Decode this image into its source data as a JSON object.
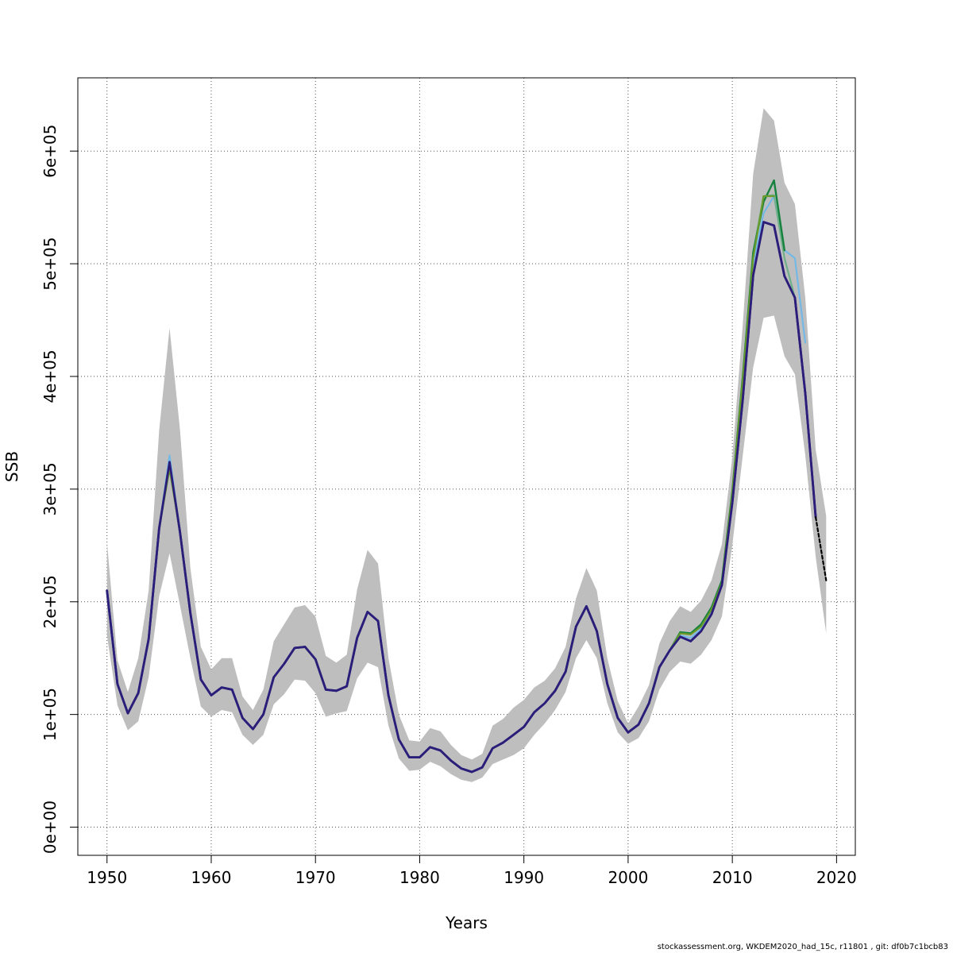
{
  "chart_data": {
    "type": "line",
    "xlabel": "Years",
    "ylabel": "SSB",
    "xlim": [
      1947.2,
      2021.8
    ],
    "ylim": [
      -25000,
      665000
    ],
    "xticks": [
      1950,
      1960,
      1970,
      1980,
      1990,
      2000,
      2010,
      2020
    ],
    "yticks": [
      0,
      100000,
      200000,
      300000,
      400000,
      500000,
      600000
    ],
    "ytick_labels": [
      "0e+00",
      "1e+05",
      "2e+05",
      "3e+05",
      "4e+05",
      "5e+05",
      "6e+05"
    ],
    "grid": true,
    "legend": "none",
    "colors": {
      "band": "#bebebe",
      "current": "#2b1d7a",
      "projection": "#000000",
      "retro": [
        "#1f3fbf",
        "#74b9e6",
        "#6a9a2a",
        "#16823d",
        "#6fb08a"
      ]
    },
    "confidence_band": {
      "x": [
        1950,
        1951,
        1952,
        1953,
        1954,
        1955,
        1956,
        1957,
        1958,
        1959,
        1960,
        1961,
        1962,
        1963,
        1964,
        1965,
        1966,
        1967,
        1968,
        1969,
        1970,
        1971,
        1972,
        1973,
        1974,
        1975,
        1976,
        1977,
        1978,
        1979,
        1980,
        1981,
        1982,
        1983,
        1984,
        1985,
        1986,
        1987,
        1988,
        1989,
        1990,
        1991,
        1992,
        1993,
        1994,
        1995,
        1996,
        1997,
        1998,
        1999,
        2000,
        2001,
        2002,
        2003,
        2004,
        2005,
        2006,
        2007,
        2008,
        2009,
        2010,
        2011,
        2012,
        2013,
        2014,
        2015,
        2016,
        2017,
        2018,
        2019
      ],
      "lower": [
        170000,
        108000,
        86000,
        94000,
        133000,
        205000,
        243000,
        197000,
        150000,
        107000,
        98000,
        104000,
        102000,
        82000,
        73000,
        82000,
        109000,
        118000,
        131000,
        130000,
        119000,
        98000,
        101000,
        103000,
        132000,
        146000,
        142000,
        90000,
        61000,
        50000,
        51000,
        58000,
        54000,
        47000,
        42000,
        40000,
        44000,
        56000,
        60000,
        64000,
        70000,
        82000,
        92000,
        104000,
        120000,
        150000,
        166000,
        150000,
        110000,
        84000,
        74000,
        79000,
        94000,
        122000,
        138000,
        147000,
        145000,
        153000,
        166000,
        187000,
        250000,
        330000,
        408000,
        452000,
        454000,
        418000,
        402000,
        330000,
        240000,
        172000
      ],
      "upper": [
        253000,
        148000,
        120000,
        150000,
        210000,
        352000,
        443000,
        353000,
        230000,
        160000,
        140000,
        150000,
        150000,
        116000,
        104000,
        122000,
        165000,
        180000,
        195000,
        197000,
        187000,
        152000,
        146000,
        153000,
        211000,
        246000,
        234000,
        150000,
        100000,
        77000,
        76000,
        88000,
        85000,
        73000,
        64000,
        60000,
        65000,
        90000,
        96000,
        106000,
        113000,
        124000,
        130000,
        141000,
        160000,
        203000,
        230000,
        210000,
        150000,
        112000,
        92000,
        107000,
        126000,
        163000,
        183000,
        196000,
        191000,
        201000,
        219000,
        251000,
        328000,
        446000,
        580000,
        638000,
        627000,
        572000,
        553000,
        470000,
        335000,
        276000
      ]
    },
    "series": [
      {
        "x": [
          1950,
          1951,
          1952,
          1953,
          1954,
          1955,
          1956,
          1957,
          1958,
          1959,
          1960,
          1961,
          1962,
          1963,
          1964,
          1965,
          1966,
          1967,
          1968,
          1969,
          1970,
          1971,
          1972,
          1973,
          1974,
          1975,
          1976,
          1977,
          1978,
          1979,
          1980,
          1981,
          1982,
          1983,
          1984,
          1985,
          1986,
          1987,
          1988,
          1989,
          1990,
          1991,
          1992,
          1993,
          1994,
          1995,
          1996,
          1997,
          1998,
          1999,
          2000,
          2001,
          2002,
          2003,
          2004,
          2005,
          2006,
          2007,
          2008,
          2009,
          2010,
          2011,
          2012,
          2013,
          2014,
          2015,
          2016,
          2017,
          2018
        ],
        "values": [
          210000,
          127000,
          101000,
          119000,
          167000,
          265000,
          324000,
          262000,
          190000,
          131000,
          117000,
          124000,
          122000,
          97000,
          87000,
          100000,
          133000,
          145000,
          159000,
          160000,
          149000,
          122000,
          121000,
          125000,
          168000,
          191000,
          183000,
          117000,
          78000,
          62000,
          62000,
          71000,
          68000,
          59000,
          52000,
          49000,
          53000,
          70000,
          75000,
          82000,
          89000,
          102000,
          110000,
          121000,
          138000,
          178000,
          196000,
          174000,
          127000,
          97000,
          84000,
          91000,
          110000,
          142000,
          157000,
          169000,
          165000,
          174000,
          189000,
          215000,
          288000,
          380000,
          490000,
          537000,
          534000,
          489000,
          470000,
          385000,
          275000
        ],
        "color": "#2b1d7a",
        "width": 2.8
      },
      {
        "x": [
          1950,
          1951,
          1952,
          1953,
          1954,
          1955,
          1956,
          1957,
          1958,
          1959,
          1960,
          1961,
          1962,
          1963,
          1964,
          1965,
          1966,
          1967,
          1968,
          1969,
          1970,
          1971,
          1972,
          1973,
          1974,
          1975,
          1976,
          1977,
          1978,
          1979,
          1980,
          1981,
          1982,
          1983,
          1984,
          1985,
          1986,
          1987,
          1988,
          1989,
          1990,
          1991,
          1992,
          1993,
          1994,
          1995,
          1996,
          1997,
          1998,
          1999,
          2000,
          2001,
          2002,
          2003,
          2004,
          2005,
          2006,
          2007,
          2008,
          2009,
          2010,
          2011,
          2012,
          2013,
          2014,
          2015,
          2016,
          2017
        ],
        "values": [
          210000,
          127000,
          101000,
          119000,
          167000,
          265000,
          330000,
          262000,
          190000,
          131000,
          117000,
          124000,
          122000,
          97000,
          87000,
          100000,
          133000,
          145000,
          159000,
          160000,
          149000,
          122000,
          121000,
          125000,
          168000,
          191000,
          183000,
          117000,
          78000,
          62000,
          62000,
          71000,
          68000,
          59000,
          52000,
          49000,
          53000,
          70000,
          75000,
          82000,
          89000,
          102000,
          110000,
          121000,
          138000,
          178000,
          196000,
          174000,
          127000,
          97000,
          84000,
          91000,
          110000,
          142000,
          157000,
          170000,
          168000,
          176000,
          192000,
          218000,
          295000,
          390000,
          500000,
          545000,
          560000,
          512000,
          505000,
          430000
        ],
        "color": "#74b9e6",
        "width": 2.2
      },
      {
        "x": [
          1950,
          1951,
          1952,
          1953,
          1954,
          1955,
          1956,
          1957,
          1958,
          1959,
          1960,
          1961,
          1962,
          1963,
          1964,
          1965,
          1966,
          1967,
          1968,
          1969,
          1970,
          1971,
          1972,
          1973,
          1974,
          1975,
          1976,
          1977,
          1978,
          1979,
          1980,
          1981,
          1982,
          1983,
          1984,
          1985,
          1986,
          1987,
          1988,
          1989,
          1990,
          1991,
          1992,
          1993,
          1994,
          1995,
          1996,
          1997,
          1998,
          1999,
          2000,
          2001,
          2002,
          2003,
          2004,
          2005,
          2006,
          2007,
          2008,
          2009,
          2010,
          2011,
          2012,
          2013,
          2014,
          2015,
          2016
        ],
        "values": [
          210000,
          127000,
          101000,
          119000,
          167000,
          265000,
          320000,
          262000,
          190000,
          131000,
          117000,
          124000,
          122000,
          97000,
          87000,
          100000,
          133000,
          145000,
          159000,
          160000,
          149000,
          122000,
          121000,
          125000,
          168000,
          191000,
          183000,
          117000,
          78000,
          62000,
          62000,
          71000,
          68000,
          59000,
          52000,
          49000,
          53000,
          70000,
          75000,
          82000,
          89000,
          102000,
          110000,
          121000,
          138000,
          178000,
          196000,
          174000,
          127000,
          97000,
          84000,
          91000,
          110000,
          142000,
          157000,
          172000,
          172000,
          178000,
          194000,
          218000,
          297000,
          395000,
          510000,
          560000,
          561000,
          505000,
          470000
        ],
        "color": "#6fb08a",
        "width": 2.2
      },
      {
        "x": [
          1950,
          1951,
          1952,
          1953,
          1954,
          1955,
          1956,
          1957,
          1958,
          1959,
          1960,
          1961,
          1962,
          1963,
          1964,
          1965,
          1966,
          1967,
          1968,
          1969,
          1970,
          1971,
          1972,
          1973,
          1974,
          1975,
          1976,
          1977,
          1978,
          1979,
          1980,
          1981,
          1982,
          1983,
          1984,
          1985,
          1986,
          1987,
          1988,
          1989,
          1990,
          1991,
          1992,
          1993,
          1994,
          1995,
          1996,
          1997,
          1998,
          1999,
          2000,
          2001,
          2002,
          2003,
          2004,
          2005,
          2006,
          2007,
          2008,
          2009,
          2010,
          2011,
          2012,
          2013,
          2014,
          2015
        ],
        "values": [
          210000,
          127000,
          101000,
          119000,
          167000,
          265000,
          322000,
          262000,
          190000,
          131000,
          117000,
          124000,
          122000,
          97000,
          87000,
          100000,
          133000,
          145000,
          159000,
          160000,
          149000,
          122000,
          121000,
          125000,
          168000,
          191000,
          183000,
          117000,
          78000,
          62000,
          62000,
          71000,
          68000,
          59000,
          52000,
          49000,
          53000,
          70000,
          75000,
          82000,
          89000,
          102000,
          110000,
          121000,
          138000,
          178000,
          196000,
          174000,
          127000,
          97000,
          84000,
          91000,
          110000,
          142000,
          157000,
          173000,
          172000,
          180000,
          195000,
          219000,
          298000,
          400000,
          510000,
          555000,
          574000,
          512000
        ],
        "color": "#16823d",
        "width": 2.4
      },
      {
        "x": [
          1950,
          1951,
          1952,
          1953,
          1954,
          1955,
          1956,
          1957,
          1958,
          1959,
          1960,
          1961,
          1962,
          1963,
          1964,
          1965,
          1966,
          1967,
          1968,
          1969,
          1970,
          1971,
          1972,
          1973,
          1974,
          1975,
          1976,
          1977,
          1978,
          1979,
          1980,
          1981,
          1982,
          1983,
          1984,
          1985,
          1986,
          1987,
          1988,
          1989,
          1990,
          1991,
          1992,
          1993,
          1994,
          1995,
          1996,
          1997,
          1998,
          1999,
          2000,
          2001,
          2002,
          2003,
          2004,
          2005,
          2006,
          2007,
          2008,
          2009,
          2010,
          2011,
          2012,
          2013,
          2014
        ],
        "values": [
          210000,
          127000,
          101000,
          119000,
          167000,
          265000,
          318000,
          262000,
          190000,
          131000,
          117000,
          124000,
          122000,
          97000,
          87000,
          100000,
          133000,
          145000,
          159000,
          160000,
          149000,
          122000,
          121000,
          125000,
          168000,
          191000,
          183000,
          117000,
          78000,
          62000,
          62000,
          71000,
          68000,
          59000,
          52000,
          49000,
          53000,
          70000,
          75000,
          82000,
          89000,
          102000,
          110000,
          121000,
          138000,
          178000,
          196000,
          174000,
          127000,
          97000,
          84000,
          91000,
          110000,
          142000,
          157000,
          172000,
          171000,
          178000,
          193000,
          217000,
          296000,
          397000,
          505000,
          560000,
          560000
        ],
        "color": "#6a9a2a",
        "width": 2.2
      },
      {
        "x": [
          1950,
          1951,
          1952,
          1953,
          1954,
          1955,
          1956,
          1957,
          1958,
          1959,
          1960,
          1961,
          1962,
          1963,
          1964,
          1965,
          1966,
          1967,
          1968,
          1969,
          1970,
          1971,
          1972,
          1973,
          1974,
          1975,
          1976,
          1977,
          1978,
          1979,
          1980,
          1981,
          1982,
          1983,
          1984,
          1985,
          1986,
          1987,
          1988,
          1989,
          1990,
          1991,
          1992,
          1993,
          1994,
          1995,
          1996,
          1997,
          1998,
          1999,
          2000,
          2001,
          2002,
          2003,
          2004,
          2005,
          2006,
          2007,
          2008,
          2009,
          2010,
          2011,
          2012,
          2013,
          2014,
          2015,
          2016,
          2017,
          2018
        ],
        "values": [
          210000,
          127000,
          101000,
          119000,
          167000,
          265000,
          324000,
          262000,
          190000,
          131000,
          117000,
          124000,
          122000,
          97000,
          87000,
          100000,
          133000,
          145000,
          159000,
          160000,
          149000,
          122000,
          121000,
          125000,
          168000,
          191000,
          183000,
          117000,
          78000,
          62000,
          62000,
          71000,
          68000,
          59000,
          52000,
          49000,
          53000,
          70000,
          75000,
          82000,
          89000,
          102000,
          110000,
          121000,
          138000,
          178000,
          196000,
          174000,
          127000,
          97000,
          84000,
          91000,
          110000,
          142000,
          157000,
          169000,
          165000,
          174000,
          189000,
          215000,
          288000,
          380000,
          490000,
          537000,
          534000,
          489000,
          470000,
          385000,
          275000
        ],
        "color": "#2b1d7a",
        "width": 2.8
      },
      {
        "x": [
          2018,
          2019
        ],
        "values": [
          275000,
          219000
        ],
        "color": "#000000",
        "width": 2.2,
        "dashed": true
      }
    ]
  },
  "footer": {
    "text": "stockassessment.org, WKDEM2020_had_15c, r11801 , git: df0b7c1bcb83"
  }
}
